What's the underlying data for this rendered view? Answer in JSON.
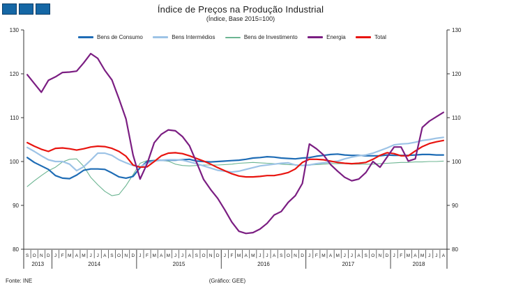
{
  "title": "Índice de Preços na Produção Industrial",
  "subtitle": "(Índice, Base 2015=100)",
  "footer": {
    "source": "Fonte: INE",
    "credit": "(Gráfico: GEE)"
  },
  "logo": {
    "name": "three-blue-squares",
    "count": 3,
    "color": "#1567a5"
  },
  "chart_data": {
    "type": "line",
    "title": "Índice de Preços na Produção Industrial",
    "subtitle": "(Índice, Base 2015=100)",
    "legend_position": "top",
    "grid": false,
    "y_axis": {
      "min": 80,
      "max": 130,
      "tick_step": 10,
      "ticks": [
        80,
        90,
        100,
        110,
        120,
        130
      ],
      "dual_sided": true
    },
    "x_axis": {
      "years": [
        {
          "label": "2013",
          "months": [
            "S",
            "O",
            "N",
            "D"
          ]
        },
        {
          "label": "2014",
          "months": [
            "J",
            "F",
            "M",
            "A",
            "M",
            "J",
            "J",
            "A",
            "S",
            "O",
            "N",
            "D"
          ]
        },
        {
          "label": "2015",
          "months": [
            "J",
            "F",
            "M",
            "A",
            "M",
            "J",
            "J",
            "A",
            "S",
            "O",
            "N",
            "D"
          ]
        },
        {
          "label": "2016",
          "months": [
            "J",
            "F",
            "M",
            "A",
            "M",
            "J",
            "J",
            "A",
            "S",
            "O",
            "N",
            "D"
          ]
        },
        {
          "label": "2017",
          "months": [
            "J",
            "F",
            "M",
            "A",
            "M",
            "J",
            "J",
            "A",
            "S",
            "O",
            "N",
            "D"
          ]
        },
        {
          "label": "2018",
          "months": [
            "J",
            "F",
            "M",
            "A",
            "M",
            "J",
            "J",
            "A"
          ]
        }
      ]
    },
    "series": [
      {
        "name": "Bens de Consumo",
        "color": "#1e6cb5",
        "width": 2.2,
        "values": [
          100.9,
          99.8,
          99.0,
          98.2,
          96.8,
          96.2,
          96.1,
          96.9,
          98.0,
          98.3,
          98.3,
          98.2,
          97.4,
          96.5,
          96.2,
          96.6,
          98.6,
          100.0,
          100.2,
          100.3,
          100.3,
          100.3,
          100.4,
          100.5,
          100.1,
          100.0,
          99.9,
          100.0,
          100.1,
          100.2,
          100.3,
          100.5,
          100.8,
          100.9,
          101.1,
          101.0,
          100.8,
          100.7,
          100.6,
          100.8,
          100.9,
          101.2,
          101.4,
          101.6,
          101.7,
          101.5,
          101.4,
          101.4,
          101.3,
          101.3,
          101.3,
          101.5,
          101.4,
          101.4,
          101.4,
          101.5,
          101.6,
          101.6,
          101.5,
          101.5
        ]
      },
      {
        "name": "Bens Intermédios",
        "color": "#9dc3e6",
        "width": 2.2,
        "values": [
          103.2,
          102.3,
          101.3,
          100.4,
          100.0,
          100.0,
          99.4,
          97.9,
          98.8,
          100.3,
          101.9,
          101.9,
          101.4,
          100.4,
          99.7,
          99.1,
          98.8,
          99.6,
          100.1,
          100.3,
          100.4,
          100.4,
          100.3,
          99.9,
          99.5,
          99.0,
          98.5,
          98.0,
          97.8,
          97.6,
          97.8,
          98.2,
          98.6,
          99.0,
          99.2,
          99.4,
          99.6,
          99.7,
          99.2,
          99.1,
          99.2,
          99.5,
          99.7,
          99.9,
          100.1,
          100.6,
          101.0,
          101.3,
          101.5,
          101.9,
          102.5,
          103.1,
          103.8,
          104.0,
          104.1,
          104.4,
          104.8,
          105.0,
          105.3,
          105.5
        ]
      },
      {
        "name": "Bens de Investimento",
        "color": "#6cb592",
        "width": 1.1,
        "values": [
          94.3,
          95.6,
          96.8,
          97.9,
          98.7,
          99.9,
          100.5,
          100.6,
          98.9,
          96.4,
          94.7,
          93.2,
          92.2,
          92.5,
          94.5,
          97.0,
          99.6,
          100.2,
          100.3,
          100.3,
          100.1,
          99.4,
          99.1,
          99.0,
          99.1,
          99.2,
          99.2,
          99.2,
          99.3,
          99.4,
          99.6,
          99.7,
          99.8,
          99.7,
          99.6,
          99.5,
          99.4,
          99.3,
          99.2,
          99.2,
          99.2,
          99.3,
          99.4,
          99.5,
          99.5,
          99.5,
          99.4,
          99.4,
          99.4,
          99.4,
          99.5,
          99.6,
          99.7,
          99.8,
          99.8,
          99.9,
          99.9,
          100.0,
          100.0,
          100.1
        ]
      },
      {
        "name": "Energia",
        "color": "#7b1e82",
        "width": 2.2,
        "values": [
          119.8,
          117.8,
          115.8,
          118.5,
          119.3,
          120.3,
          120.4,
          120.6,
          122.5,
          124.6,
          123.5,
          120.8,
          118.6,
          114.3,
          109.7,
          101.5,
          96.0,
          99.5,
          104.3,
          106.2,
          107.2,
          107.0,
          105.7,
          103.6,
          99.8,
          95.9,
          93.6,
          91.6,
          89.0,
          86.2,
          84.1,
          83.6,
          83.8,
          84.6,
          85.9,
          87.8,
          88.6,
          90.7,
          92.2,
          95.0,
          104.0,
          102.9,
          101.5,
          99.3,
          97.8,
          96.4,
          95.6,
          96.0,
          97.5,
          100.0,
          98.7,
          101.0,
          103.3,
          103.3,
          100.1,
          100.6,
          107.8,
          109.2,
          110.2,
          111.2
        ]
      },
      {
        "name": "Total",
        "color": "#e8140f",
        "width": 2.2,
        "values": [
          104.3,
          103.5,
          102.8,
          102.3,
          103.0,
          103.1,
          102.9,
          102.6,
          102.9,
          103.3,
          103.5,
          103.4,
          103.0,
          102.3,
          101.2,
          99.2,
          98.7,
          98.8,
          100.0,
          101.3,
          101.9,
          102.0,
          101.8,
          101.3,
          100.7,
          100.1,
          99.4,
          98.6,
          97.9,
          97.2,
          96.7,
          96.5,
          96.5,
          96.6,
          96.8,
          96.8,
          97.1,
          97.5,
          98.3,
          99.8,
          100.5,
          100.5,
          100.4,
          100.1,
          99.8,
          99.6,
          99.5,
          99.6,
          99.8,
          100.5,
          101.4,
          102.0,
          101.8,
          101.3,
          101.3,
          102.4,
          103.4,
          104.1,
          104.5,
          104.8
        ]
      }
    ]
  }
}
